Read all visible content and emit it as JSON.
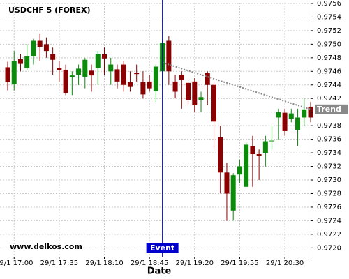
{
  "chart_data": {
    "type": "candlestick",
    "title": "USDCHF 5 (FOREX)",
    "watermark": "www.delkos.com",
    "xlabel": "Date",
    "up_color": "#0b8a0b",
    "down_color": "#8b0000",
    "categories": [
      null,
      "29/1 17:00",
      null,
      null,
      null,
      null,
      null,
      null,
      "29/1 17:35",
      null,
      null,
      null,
      null,
      null,
      null,
      "29/1 18:10",
      null,
      null,
      null,
      null,
      null,
      null,
      "29/1 18:45",
      null,
      null,
      null,
      null,
      null,
      null,
      "29/1 19:20",
      null,
      null,
      null,
      null,
      null,
      null,
      "29/1 19:55",
      null,
      null,
      null,
      null,
      null,
      null,
      "29/1 20:30",
      null,
      null,
      null,
      null
    ],
    "open": [
      0.97466,
      0.97441,
      0.97478,
      0.97465,
      0.97482,
      0.97505,
      0.975,
      0.97485,
      0.97465,
      0.97462,
      0.97452,
      0.97455,
      0.97452,
      0.97461,
      0.97465,
      0.97485,
      0.9746,
      0.97463,
      0.9747,
      0.97444,
      0.97458,
      0.97444,
      0.97445,
      0.97431,
      0.9746,
      0.97505,
      0.97445,
      0.97455,
      0.97443,
      0.97445,
      0.97418,
      0.97458,
      0.9744,
      0.97363,
      0.97311,
      0.97255,
      0.97308,
      0.9729,
      0.9735,
      0.97338,
      0.9734,
      0.97357,
      0.97392,
      0.97399,
      0.9739,
      0.97374,
      0.97392,
      0.97408
    ],
    "high": [
      0.97474,
      0.9749,
      0.97485,
      0.975,
      0.97508,
      0.97515,
      0.9751,
      0.97495,
      0.97475,
      0.9747,
      0.9746,
      0.9747,
      0.9748,
      0.9747,
      0.9749,
      0.97495,
      0.9748,
      0.9747,
      0.97475,
      0.9746,
      0.9747,
      0.9746,
      0.97455,
      0.9747,
      0.97505,
      0.97512,
      0.97455,
      0.9746,
      0.97445,
      0.9745,
      0.9743,
      0.9746,
      0.97445,
      0.9738,
      0.97325,
      0.9731,
      0.9733,
      0.97355,
      0.97365,
      0.97345,
      0.97365,
      0.9738,
      0.97405,
      0.97405,
      0.97405,
      0.97405,
      0.9742,
      0.97415
    ],
    "low": [
      0.97432,
      0.97432,
      0.9746,
      0.97462,
      0.9747,
      0.97475,
      0.9748,
      0.97455,
      0.97445,
      0.97425,
      0.97425,
      0.9744,
      0.97435,
      0.9743,
      0.9744,
      0.97455,
      0.9744,
      0.97435,
      0.9743,
      0.9743,
      0.97445,
      0.9742,
      0.9743,
      0.97415,
      0.97435,
      0.9744,
      0.9742,
      0.97405,
      0.9741,
      0.974,
      0.974,
      0.9741,
      0.97345,
      0.9728,
      0.9724,
      0.9724,
      0.97295,
      0.9729,
      0.9729,
      0.973,
      0.9732,
      0.97345,
      0.9736,
      0.97365,
      0.97385,
      0.9735,
      0.9738,
      0.97385
    ],
    "close": [
      0.97444,
      0.97475,
      0.97471,
      0.97482,
      0.97505,
      0.97496,
      0.9749,
      0.97477,
      0.97462,
      0.97428,
      0.97454,
      0.97464,
      0.97477,
      0.97454,
      0.97485,
      0.97479,
      0.9747,
      0.97445,
      0.9744,
      0.97437,
      0.97456,
      0.97426,
      0.97435,
      0.97467,
      0.97502,
      0.9746,
      0.9743,
      0.97448,
      0.97418,
      0.9741,
      0.97422,
      0.9744,
      0.97386,
      0.97311,
      0.9728,
      0.97307,
      0.9732,
      0.97352,
      0.97338,
      0.97335,
      0.97357,
      0.97358,
      0.974,
      0.97372,
      0.97398,
      0.97392,
      0.97404,
      0.97392
    ],
    "ylim": [
      0.97187,
      0.97561
    ],
    "yticks": [
      {
        "value": 0.972,
        "label": "0.9720"
      },
      0.9722,
      0.9724,
      0.9726,
      0.9728,
      {
        "value": 0.973,
        "label": "0.9730"
      },
      0.9732,
      0.9734,
      0.9736,
      0.9738,
      {
        "value": 0.974,
        "label": "0.9740"
      },
      0.9742,
      0.9744,
      0.9746,
      0.9748,
      {
        "value": 0.975,
        "label": "0.9750"
      },
      0.9752,
      0.9754,
      0.9756
    ],
    "grid": true,
    "event": {
      "label": "Event",
      "index": 24,
      "color": "#0000cc"
    },
    "trend": {
      "label": "Trend",
      "start_index": 24,
      "start_value": 0.97473,
      "end_index": 47,
      "end_value": 0.97404,
      "color": "#888888"
    }
  }
}
